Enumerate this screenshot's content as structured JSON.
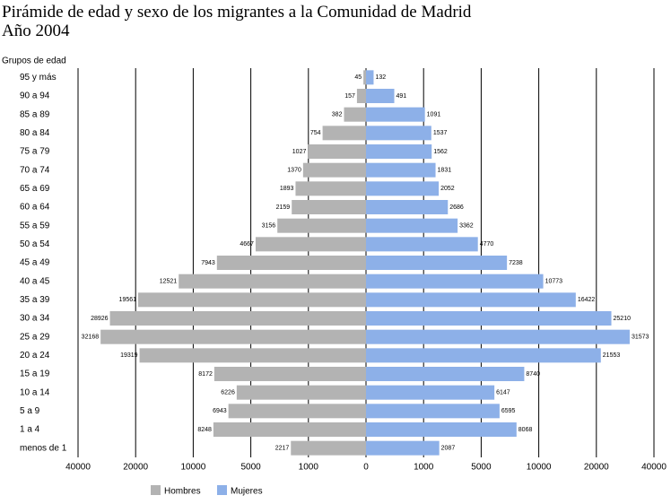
{
  "chart_data": {
    "type": "pyramid",
    "title": "Pirámide de edad y sexo de los migrantes a la Comunidad de Madrid",
    "subtitle": "Año 2004",
    "y_label": "Grupos de edad",
    "categories": [
      "95 y más",
      "90 a 94",
      "85 a 89",
      "80 a 84",
      "75 a 79",
      "70 a 74",
      "65 a 69",
      "60 a 64",
      "55 a 59",
      "50 a 54",
      "45 a 49",
      "40 a 45",
      "35 a 39",
      "30 a 34",
      "25 a 29",
      "20 a 24",
      "15 a 19",
      "10 a 14",
      "5 a 9",
      "1 a 4",
      "menos de 1"
    ],
    "series": [
      {
        "name": "Hombres",
        "color": "#b3b3b3",
        "mirror": true,
        "values": [
          45,
          157,
          382,
          754,
          1027,
          1370,
          1893,
          2159,
          3156,
          4667,
          7943,
          12521,
          19561,
          28926,
          32168,
          19319,
          8172,
          6226,
          6943,
          8248,
          2217
        ]
      },
      {
        "name": "Mujeres",
        "color": "#8db0e8",
        "values": [
          132,
          491,
          1091,
          1537,
          1562,
          1831,
          2052,
          2686,
          3362,
          4770,
          7238,
          10773,
          16422,
          25210,
          31573,
          21553,
          8740,
          6147,
          6595,
          8068,
          2087
        ]
      }
    ],
    "xscale": "piecewise",
    "xlim": [
      -40000,
      40000
    ],
    "xticks": [
      {
        "value": -40000,
        "label": "40000"
      },
      {
        "value": -20000,
        "label": "20000"
      },
      {
        "value": -10000,
        "label": "10000"
      },
      {
        "value": -5000,
        "label": "5000"
      },
      {
        "value": -1000,
        "label": "1000"
      },
      0,
      1000,
      5000,
      10000,
      20000,
      40000
    ],
    "grid": true
  }
}
